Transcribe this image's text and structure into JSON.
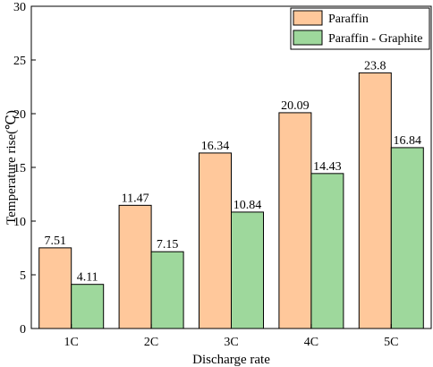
{
  "chart_data": {
    "type": "bar",
    "title": "",
    "xlabel": "Discharge rate",
    "ylabel": "Temperature rise(℃)",
    "categories": [
      "1C",
      "2C",
      "3C",
      "4C",
      "5C"
    ],
    "ylim": [
      0,
      30
    ],
    "yticks": [
      0,
      5,
      10,
      15,
      20,
      25,
      30
    ],
    "series": [
      {
        "name": "Paraffin",
        "values": [
          7.51,
          11.47,
          16.34,
          20.09,
          23.8
        ],
        "labels": [
          "7.51",
          "11.47",
          "16.34",
          "20.09",
          "23.8"
        ],
        "color": "#FFC89B"
      },
      {
        "name": "Paraffin - Graphite",
        "values": [
          4.11,
          7.15,
          10.84,
          14.43,
          16.84
        ],
        "labels": [
          "4.11",
          "7.15",
          "10.84",
          "14.43",
          "16.84"
        ],
        "color": "#9ED89C"
      }
    ],
    "legend_position": "top-right",
    "grid": false
  }
}
